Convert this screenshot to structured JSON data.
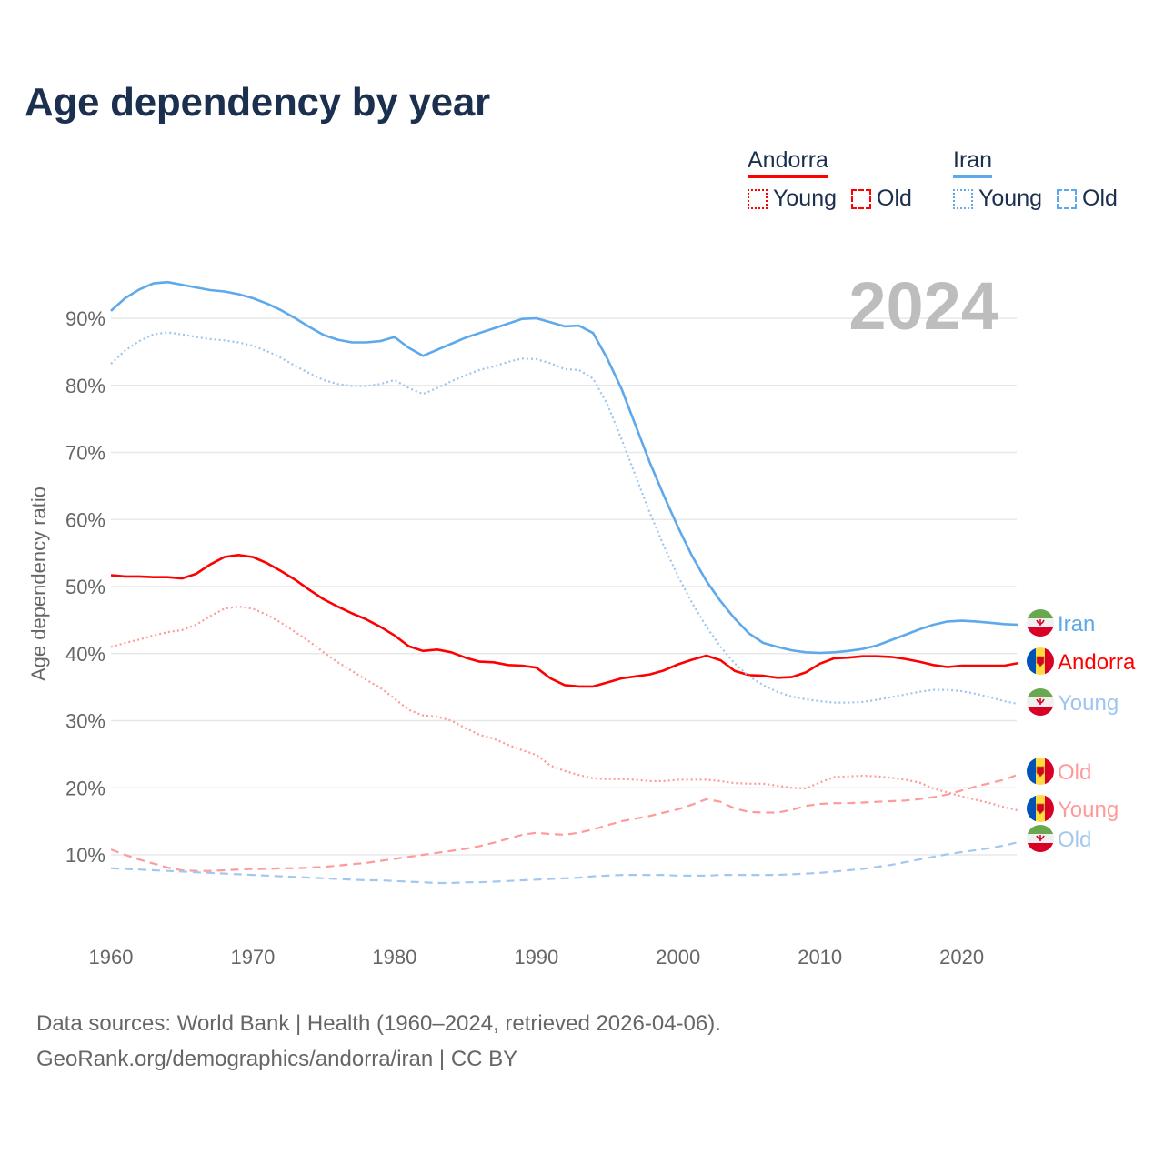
{
  "chart_data": {
    "type": "line",
    "title": "Age dependency by year",
    "ylabel": "Age dependency ratio",
    "xlabel": "",
    "year_watermark": "2024",
    "x": [
      1960,
      1961,
      1962,
      1963,
      1964,
      1965,
      1966,
      1967,
      1968,
      1969,
      1970,
      1971,
      1972,
      1973,
      1974,
      1975,
      1976,
      1977,
      1978,
      1979,
      1980,
      1981,
      1982,
      1983,
      1984,
      1985,
      1986,
      1987,
      1988,
      1989,
      1990,
      1991,
      1992,
      1993,
      1994,
      1995,
      1996,
      1997,
      1998,
      1999,
      2000,
      2001,
      2002,
      2003,
      2004,
      2005,
      2006,
      2007,
      2008,
      2009,
      2010,
      2011,
      2012,
      2013,
      2014,
      2015,
      2016,
      2017,
      2018,
      2019,
      2020,
      2021,
      2022,
      2023,
      2024
    ],
    "xlim": [
      1960,
      2024
    ],
    "ylim": [
      0,
      100
    ],
    "x_ticks": [
      1960,
      1970,
      1980,
      1990,
      2000,
      2010,
      2020
    ],
    "y_ticks": [
      10,
      20,
      30,
      40,
      50,
      60,
      70,
      80,
      90
    ],
    "y_tick_labels": [
      "10%",
      "20%",
      "30%",
      "40%",
      "50%",
      "60%",
      "70%",
      "80%",
      "90%"
    ],
    "grid": true,
    "legend_placement": "top-right",
    "legend": {
      "groups": [
        {
          "country": "Andorra",
          "color": "#ff0000",
          "items": [
            {
              "label": "Young",
              "style": "dotted"
            },
            {
              "label": "Old",
              "style": "dashed"
            }
          ]
        },
        {
          "country": "Iran",
          "color": "#5ea8ec",
          "items": [
            {
              "label": "Young",
              "style": "dotted"
            },
            {
              "label": "Old",
              "style": "dashed"
            }
          ]
        }
      ]
    },
    "series": [
      {
        "name": "Iran",
        "end_label": "Iran",
        "country": "Iran",
        "style": "solid",
        "color": "#5ea8ec",
        "label_color": "#5ea8ec",
        "values": [
          91.1,
          93.0,
          94.3,
          95.2,
          95.4,
          95.0,
          94.6,
          94.2,
          94.0,
          93.6,
          93.0,
          92.2,
          91.2,
          90.0,
          88.7,
          87.5,
          86.8,
          86.4,
          86.4,
          86.6,
          87.2,
          85.6,
          84.4,
          85.3,
          86.2,
          87.1,
          87.8,
          88.5,
          89.2,
          89.9,
          90.0,
          89.4,
          88.8,
          88.9,
          87.8,
          84.0,
          79.5,
          74.0,
          68.5,
          63.5,
          58.8,
          54.5,
          50.8,
          47.8,
          45.2,
          43.0,
          41.6,
          41.0,
          40.5,
          40.2,
          40.1,
          40.2,
          40.4,
          40.7,
          41.2,
          42.0,
          42.8,
          43.6,
          44.3,
          44.8,
          44.9,
          44.8,
          44.6,
          44.4,
          44.3
        ]
      },
      {
        "name": "Andorra",
        "end_label": "Andorra",
        "country": "Andorra",
        "style": "solid",
        "color": "#ff0000",
        "label_color": "#ff0000",
        "values": [
          51.7,
          51.5,
          51.5,
          51.4,
          51.4,
          51.2,
          51.9,
          53.3,
          54.4,
          54.7,
          54.4,
          53.5,
          52.3,
          51.0,
          49.5,
          48.1,
          47.0,
          46.0,
          45.1,
          44.0,
          42.7,
          41.1,
          40.4,
          40.6,
          40.2,
          39.4,
          38.8,
          38.7,
          38.3,
          38.2,
          37.9,
          36.3,
          35.3,
          35.1,
          35.1,
          35.7,
          36.3,
          36.6,
          36.9,
          37.5,
          38.4,
          39.1,
          39.7,
          39.0,
          37.4,
          36.8,
          36.7,
          36.4,
          36.5,
          37.2,
          38.5,
          39.3,
          39.4,
          39.6,
          39.6,
          39.5,
          39.2,
          38.8,
          38.3,
          38.0,
          38.2,
          38.2,
          38.2,
          38.2,
          38.6
        ]
      },
      {
        "name": "Iran Young",
        "end_label": "Young",
        "country": "Iran",
        "style": "dotted",
        "color": "#9cc5ef",
        "label_color": "#9cc5ef",
        "values": [
          83.2,
          85.2,
          86.6,
          87.6,
          87.9,
          87.6,
          87.2,
          86.9,
          86.7,
          86.4,
          85.9,
          85.1,
          84.1,
          82.9,
          81.8,
          80.8,
          80.2,
          79.9,
          79.9,
          80.2,
          80.8,
          79.6,
          78.7,
          79.6,
          80.6,
          81.5,
          82.3,
          82.8,
          83.5,
          84.0,
          83.9,
          83.3,
          82.4,
          82.3,
          81.0,
          77.2,
          72.0,
          66.5,
          61.0,
          56.0,
          51.5,
          47.5,
          44.0,
          41.0,
          38.5,
          36.6,
          35.3,
          34.3,
          33.6,
          33.2,
          32.9,
          32.7,
          32.7,
          32.8,
          33.1,
          33.5,
          33.9,
          34.3,
          34.6,
          34.6,
          34.4,
          34.0,
          33.5,
          32.9,
          32.5
        ]
      },
      {
        "name": "Andorra Old",
        "end_label": "Old",
        "country": "Andorra",
        "style": "dashed",
        "color": "#ff9a9a",
        "label_color": "#ff9a9a",
        "values": [
          10.8,
          10.0,
          9.3,
          8.7,
          8.1,
          7.7,
          7.6,
          7.6,
          7.7,
          7.8,
          7.9,
          7.9,
          8.0,
          8.0,
          8.1,
          8.2,
          8.4,
          8.6,
          8.8,
          9.1,
          9.4,
          9.7,
          10.0,
          10.3,
          10.6,
          10.9,
          11.3,
          11.8,
          12.4,
          13.0,
          13.3,
          13.1,
          13.0,
          13.3,
          13.8,
          14.4,
          15.0,
          15.4,
          15.8,
          16.3,
          16.8,
          17.5,
          18.3,
          17.9,
          16.9,
          16.4,
          16.3,
          16.3,
          16.7,
          17.3,
          17.6,
          17.7,
          17.7,
          17.8,
          17.9,
          18.0,
          18.1,
          18.3,
          18.6,
          19.0,
          19.6,
          20.2,
          20.7,
          21.2,
          22.0
        ]
      },
      {
        "name": "Andorra Young",
        "end_label": "Young",
        "country": "Andorra",
        "style": "dotted",
        "color": "#ff9a9a",
        "label_color": "#ff9a9a",
        "values": [
          41.0,
          41.6,
          42.1,
          42.7,
          43.2,
          43.5,
          44.3,
          45.6,
          46.7,
          47.0,
          46.7,
          45.8,
          44.6,
          43.2,
          41.8,
          40.2,
          38.7,
          37.4,
          36.1,
          34.9,
          33.3,
          31.6,
          30.8,
          30.6,
          30.0,
          28.9,
          27.9,
          27.3,
          26.4,
          25.6,
          24.9,
          23.3,
          22.5,
          21.9,
          21.4,
          21.3,
          21.3,
          21.2,
          21.0,
          21.0,
          21.2,
          21.2,
          21.2,
          21.0,
          20.7,
          20.6,
          20.6,
          20.3,
          20.0,
          19.9,
          20.8,
          21.6,
          21.7,
          21.8,
          21.7,
          21.5,
          21.2,
          20.8,
          19.9,
          19.3,
          18.7,
          18.2,
          17.7,
          17.1,
          16.6
        ]
      },
      {
        "name": "Iran Old",
        "end_label": "Old",
        "country": "Iran",
        "style": "dashed",
        "color": "#a3c8f0",
        "label_color": "#a3c8f0",
        "values": [
          8.0,
          7.9,
          7.8,
          7.7,
          7.6,
          7.5,
          7.4,
          7.3,
          7.2,
          7.1,
          7.0,
          6.9,
          6.8,
          6.7,
          6.6,
          6.5,
          6.4,
          6.3,
          6.2,
          6.2,
          6.1,
          6.0,
          5.9,
          5.8,
          5.8,
          5.9,
          5.9,
          6.0,
          6.1,
          6.2,
          6.3,
          6.4,
          6.5,
          6.6,
          6.8,
          6.9,
          7.0,
          7.0,
          7.0,
          7.0,
          6.9,
          6.9,
          6.9,
          7.0,
          7.0,
          7.0,
          7.0,
          7.0,
          7.1,
          7.2,
          7.3,
          7.5,
          7.7,
          7.9,
          8.2,
          8.5,
          8.9,
          9.3,
          9.7,
          10.1,
          10.4,
          10.7,
          11.0,
          11.4,
          11.9
        ]
      }
    ]
  },
  "footer": {
    "line1": "Data sources: World Bank | Health (1960–2024, retrieved 2026-04-06).",
    "line2": "GeoRank.org/demographics/andorra/iran | CC BY"
  }
}
